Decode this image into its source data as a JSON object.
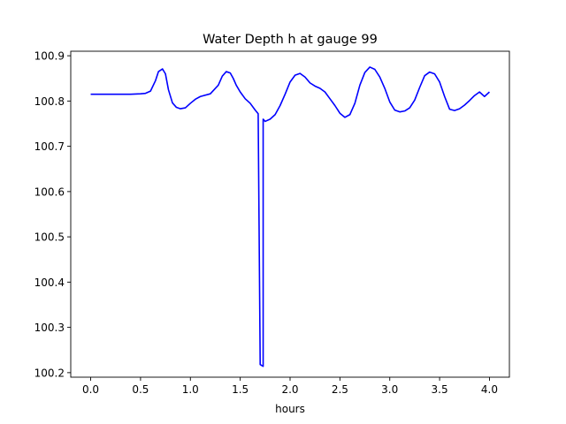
{
  "chart_data": {
    "type": "line",
    "title": "Water Depth h at gauge 99",
    "xlabel": "hours",
    "ylabel": "",
    "xlim": [
      -0.2,
      4.2
    ],
    "ylim": [
      100.19,
      100.91
    ],
    "xticks": [
      0.0,
      0.5,
      1.0,
      1.5,
      2.0,
      2.5,
      3.0,
      3.5,
      4.0
    ],
    "xtick_labels": [
      "0.0",
      "0.5",
      "1.0",
      "1.5",
      "2.0",
      "2.5",
      "3.0",
      "3.5",
      "4.0"
    ],
    "yticks": [
      100.2,
      100.3,
      100.4,
      100.5,
      100.6,
      100.7,
      100.8,
      100.9
    ],
    "ytick_labels": [
      "100.2",
      "100.3",
      "100.4",
      "100.5",
      "100.6",
      "100.7",
      "100.8",
      "100.9"
    ],
    "grid": false,
    "series": [
      {
        "color": "#0000ff",
        "x": [
          0.0,
          0.2,
          0.4,
          0.5,
          0.55,
          0.6,
          0.65,
          0.68,
          0.72,
          0.75,
          0.78,
          0.82,
          0.86,
          0.9,
          0.95,
          1.0,
          1.05,
          1.1,
          1.2,
          1.28,
          1.32,
          1.36,
          1.4,
          1.43,
          1.46,
          1.5,
          1.55,
          1.6,
          1.65,
          1.68,
          1.7,
          1.7,
          1.73,
          1.73,
          1.75,
          1.8,
          1.85,
          1.9,
          1.95,
          2.0,
          2.05,
          2.1,
          2.15,
          2.2,
          2.25,
          2.3,
          2.35,
          2.4,
          2.45,
          2.5,
          2.55,
          2.6,
          2.65,
          2.7,
          2.75,
          2.8,
          2.85,
          2.9,
          2.95,
          3.0,
          3.05,
          3.1,
          3.15,
          3.2,
          3.25,
          3.3,
          3.35,
          3.4,
          3.45,
          3.5,
          3.55,
          3.6,
          3.65,
          3.7,
          3.75,
          3.8,
          3.85,
          3.9,
          3.95,
          4.0
        ],
        "y": [
          100.815,
          100.815,
          100.815,
          100.816,
          100.817,
          100.822,
          100.845,
          100.865,
          100.871,
          100.86,
          100.825,
          100.796,
          100.786,
          100.783,
          100.785,
          100.795,
          100.804,
          100.81,
          100.816,
          100.835,
          100.855,
          100.865,
          100.862,
          100.85,
          100.835,
          100.82,
          100.805,
          100.795,
          100.78,
          100.772,
          100.225,
          100.218,
          100.214,
          100.76,
          100.755,
          100.76,
          100.77,
          100.79,
          100.815,
          100.842,
          100.857,
          100.861,
          100.853,
          100.84,
          100.833,
          100.828,
          100.82,
          100.805,
          100.79,
          100.773,
          100.764,
          100.77,
          100.795,
          100.835,
          100.863,
          100.875,
          100.87,
          100.853,
          100.828,
          100.798,
          100.78,
          100.776,
          100.778,
          100.785,
          100.802,
          100.83,
          100.856,
          100.864,
          100.86,
          100.842,
          100.81,
          100.782,
          100.779,
          100.783,
          100.791,
          100.801,
          100.812,
          100.82,
          100.81,
          100.82
        ]
      }
    ]
  }
}
